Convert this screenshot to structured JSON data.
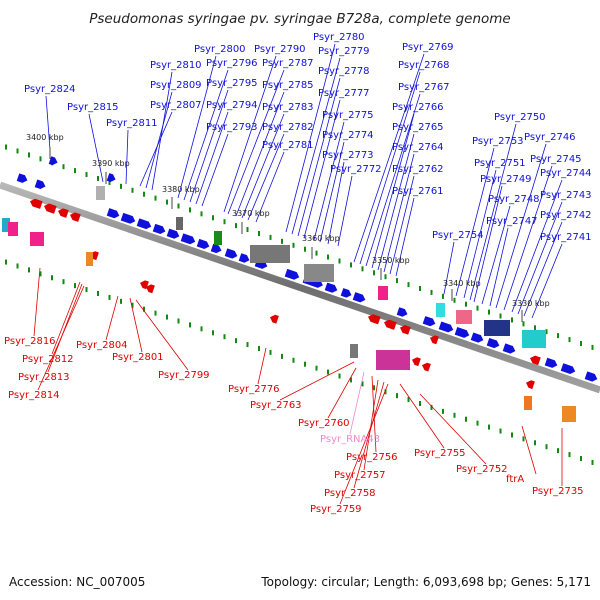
{
  "title": "Pseudomonas syringae pv. syringae B728a, complete genome",
  "footer": {
    "accession": "Accession: NC_007005",
    "summary": "Topology: circular; Length: 6,093,698 bp; Genes: 5,171"
  },
  "colors": {
    "forward": "#1010dd",
    "reverse": "#e00000",
    "rna": "#ee88cc",
    "backbone": "#808080",
    "tick": "#118811"
  },
  "ticks": [
    {
      "label": "3400 kbp"
    },
    {
      "label": "3390 kbp"
    },
    {
      "label": "3380 kbp"
    },
    {
      "label": "3370 kbp"
    },
    {
      "label": "3360 kbp"
    },
    {
      "label": "3350 kbp"
    },
    {
      "label": "3340 kbp"
    },
    {
      "label": "3330 kbp"
    }
  ],
  "forward_labels": [
    "Psyr_2824",
    "Psyr_2815",
    "Psyr_2811",
    "Psyr_2807",
    "Psyr_2809",
    "Psyr_2810",
    "Psyr_2800",
    "Psyr_2796",
    "Psyr_2795",
    "Psyr_2794",
    "Psyr_2793",
    "Psyr_2790",
    "Psyr_2787",
    "Psyr_2785",
    "Psyr_2783",
    "Psyr_2782",
    "Psyr_2781",
    "Psyr_2780",
    "Psyr_2779",
    "Psyr_2778",
    "Psyr_2777",
    "Psyr_2775",
    "Psyr_2774",
    "Psyr_2773",
    "Psyr_2772",
    "Psyr_2769",
    "Psyr_2768",
    "Psyr_2767",
    "Psyr_2766",
    "Psyr_2765",
    "Psyr_2764",
    "Psyr_2762",
    "Psyr_2761",
    "Psyr_2754",
    "Psyr_2753",
    "Psyr_2751",
    "Psyr_2750",
    "Psyr_2749",
    "Psyr_2748",
    "Psyr_2747",
    "Psyr_2746",
    "Psyr_2745",
    "Psyr_2744",
    "Psyr_2743",
    "Psyr_2742",
    "Psyr_2741"
  ],
  "reverse_labels": [
    "Psyr_2816",
    "Psyr_2812",
    "Psyr_2813",
    "Psyr_2814",
    "Psyr_2804",
    "Psyr_2801",
    "Psyr_2799",
    "Psyr_2776",
    "Psyr_2763",
    "Psyr_2760",
    "Psyr_RNA43",
    "Psyr_2756",
    "Psyr_2757",
    "Psyr_2758",
    "Psyr_2759",
    "Psyr_2755",
    "Psyr_2752",
    "ftrA",
    "Psyr_2735"
  ]
}
